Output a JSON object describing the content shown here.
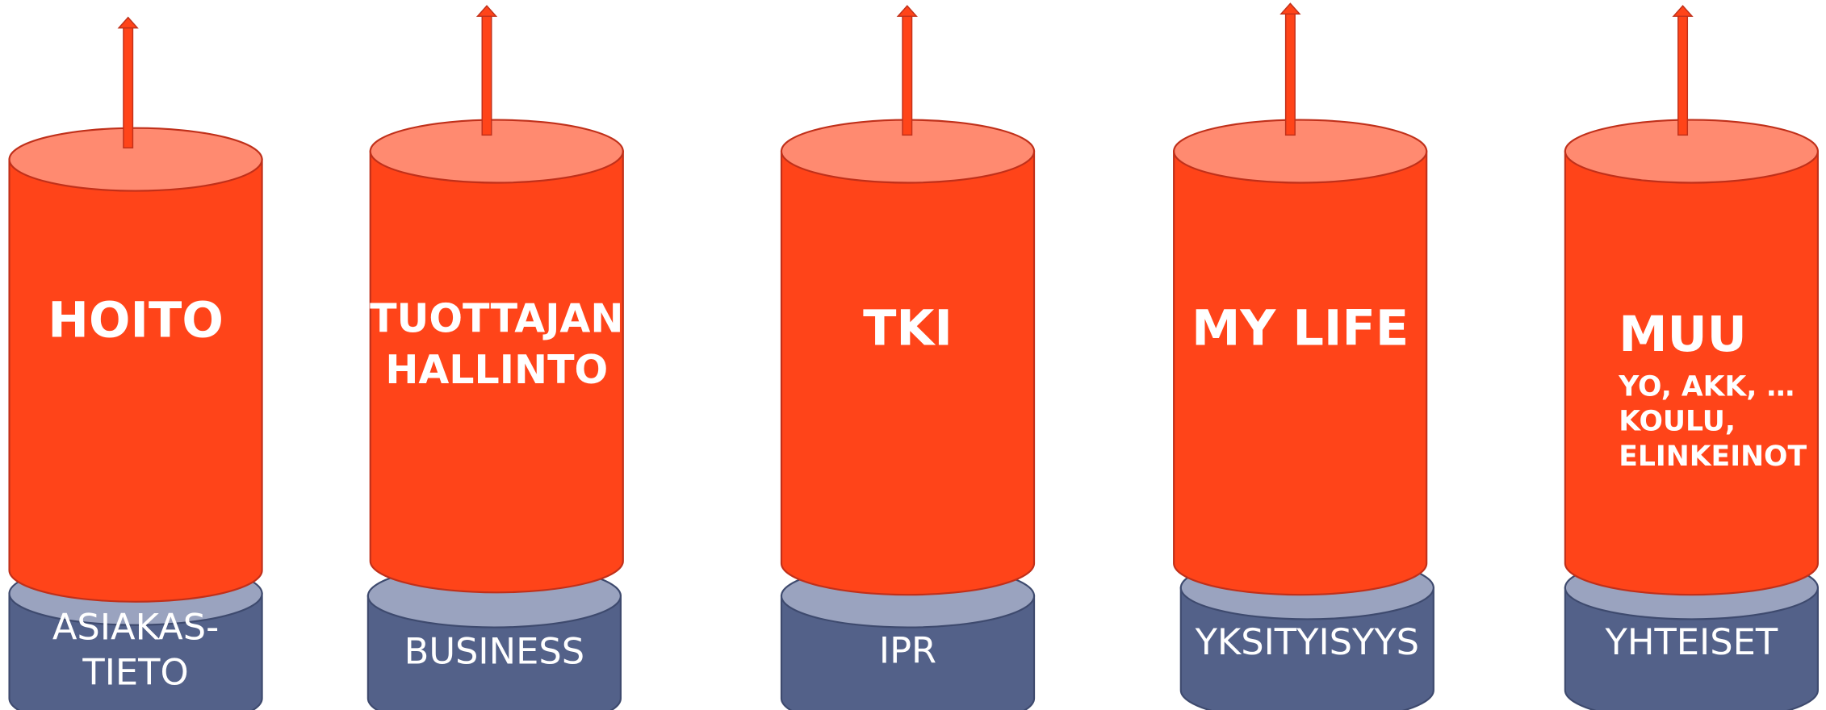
{
  "pillars": [
    {
      "label": [
        "HOITO"
      ],
      "base": [
        "ASIAKAS-",
        "TIETO"
      ]
    },
    {
      "label": [
        "TUOTTAJAN",
        "HALLINTO"
      ],
      "base": [
        "BUSINESS"
      ]
    },
    {
      "label": [
        "TKI"
      ],
      "base": [
        "IPR"
      ]
    },
    {
      "label": [
        "MY LIFE"
      ],
      "base": [
        "YKSITYISYYS"
      ]
    },
    {
      "label": [
        "MUU"
      ],
      "sublabel": [
        "YO, AKK, …",
        "KOULU,",
        "ELINKEINOT"
      ],
      "base": [
        "YHTEISET"
      ]
    }
  ]
}
